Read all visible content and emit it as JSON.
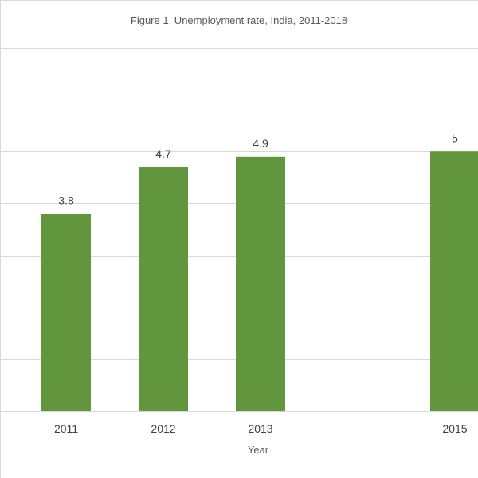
{
  "chart_data": {
    "type": "bar",
    "title": "Figure 1. Unemployment rate, India, 2011-2018",
    "xlabel": "Year",
    "ylabel": "",
    "categories": [
      "2011",
      "2012",
      "2013",
      "2015"
    ],
    "values": [
      3.8,
      4.7,
      4.9,
      5
    ],
    "data_labels": [
      "3.8",
      "4.7",
      "4.9",
      "5"
    ],
    "ylim": [
      0,
      7
    ],
    "grid": true,
    "legend": "none",
    "colors": {
      "bar": "#62963d",
      "grid": "#d9d9d9",
      "text": "#404040",
      "background": "#ffffff"
    }
  }
}
